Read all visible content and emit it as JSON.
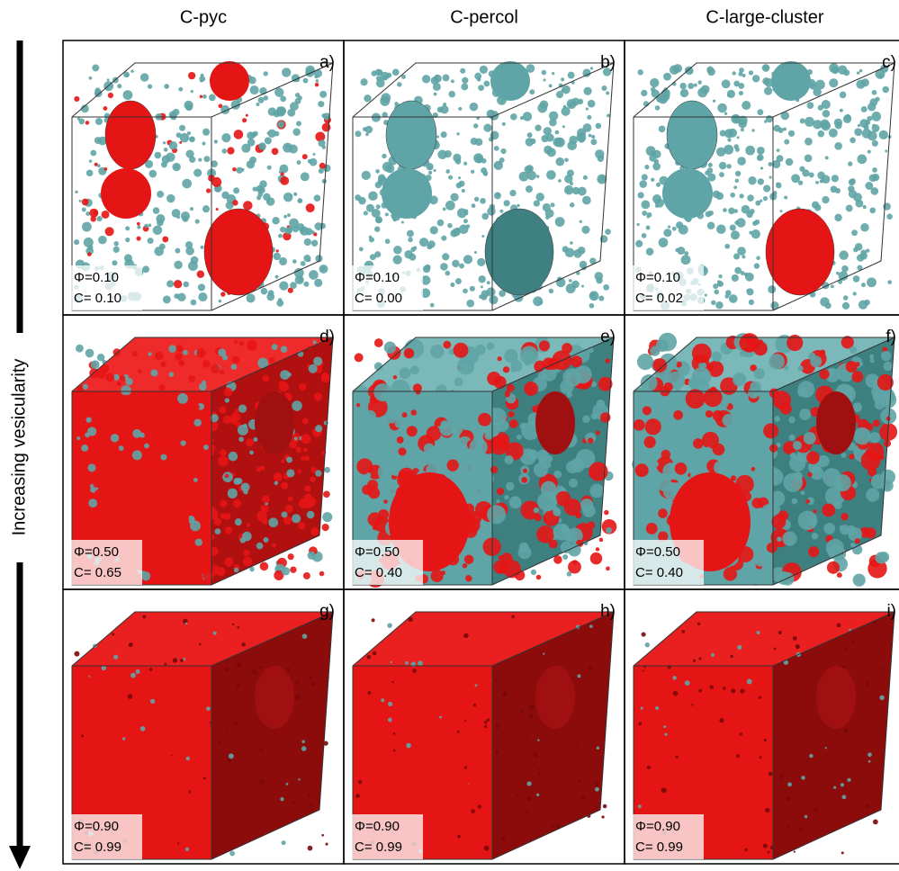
{
  "column_headers": [
    "C-pyc",
    "C-percol",
    "C-large-cluster"
  ],
  "side_label": "Increasing vesicularity",
  "panels": [
    {
      "label": "a)",
      "phi": "Φ=0.10",
      "c": "C= 0.10"
    },
    {
      "label": "b)",
      "phi": "Φ=0.10",
      "c": "C= 0.00"
    },
    {
      "label": "c)",
      "phi": "Φ=0.10",
      "c": "C= 0.02"
    },
    {
      "label": "d)",
      "phi": "Φ=0.50",
      "c": "C= 0.65"
    },
    {
      "label": "e)",
      "phi": "Φ=0.50",
      "c": "C= 0.40"
    },
    {
      "label": "f)",
      "phi": "Φ=0.50",
      "c": "C= 0.40"
    },
    {
      "label": "g)",
      "phi": "Φ=0.90",
      "c": "C= 0.99"
    },
    {
      "label": "h)",
      "phi": "Φ=0.90",
      "c": "C= 0.99"
    },
    {
      "label": "i)",
      "phi": "Φ=0.90",
      "c": "C= 0.99"
    }
  ]
}
